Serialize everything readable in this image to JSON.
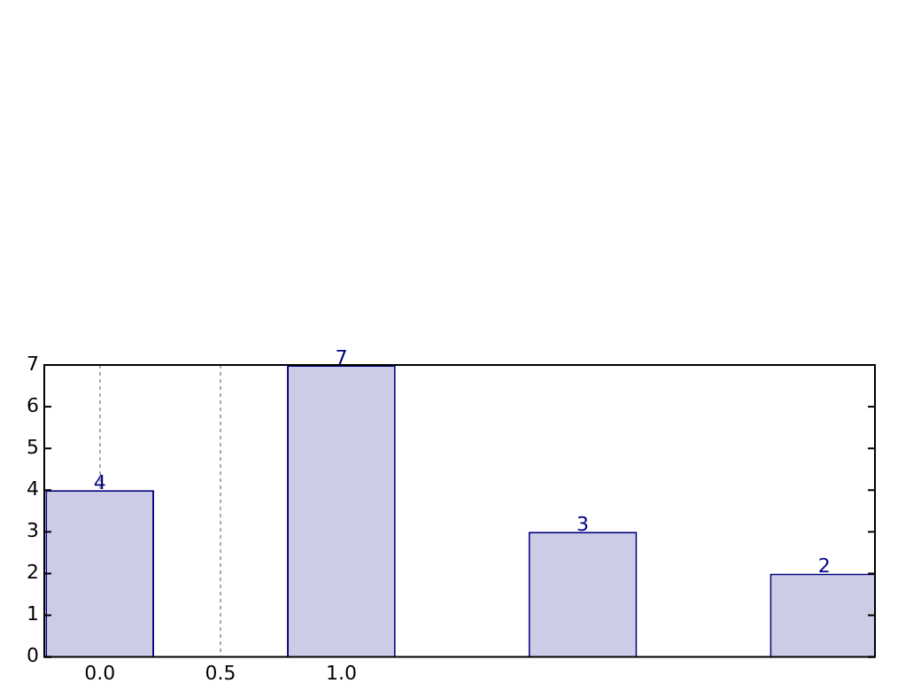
{
  "chart_data": {
    "type": "bar",
    "x": [
      0,
      1,
      2,
      3
    ],
    "values": [
      4,
      7,
      3,
      2
    ],
    "color": "#ccccE6",
    "xlim": [
      -0.23,
      3.21
    ],
    "xticks": [
      {
        "value": 0,
        "label": "0.0"
      },
      {
        "value": 0.5,
        "label": "0.5"
      },
      {
        "value": 1,
        "label": "1.0"
      }
    ],
    "ylim": [
      0,
      7
    ],
    "yticks": [
      0,
      1,
      2,
      3,
      4,
      5,
      6,
      7
    ],
    "grid": "x",
    "data_labels": true
  }
}
